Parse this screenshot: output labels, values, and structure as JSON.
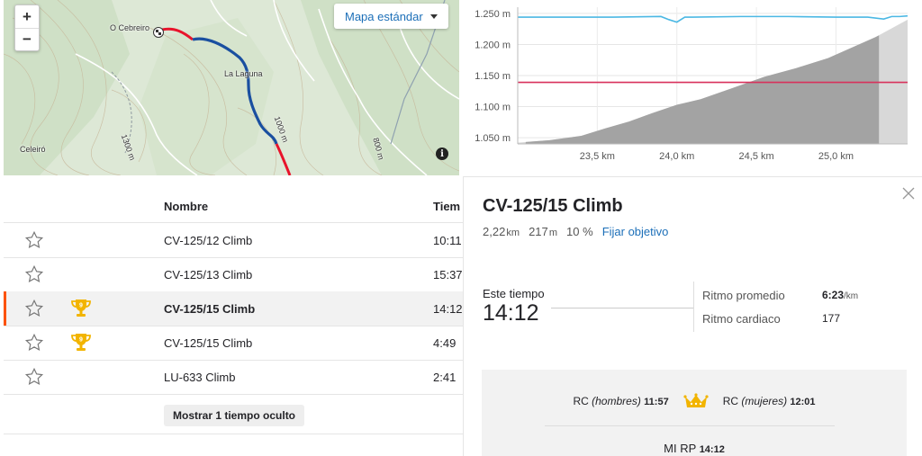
{
  "map": {
    "zoom_in": "+",
    "zoom_out": "−",
    "map_type": "Mapa estándar",
    "labels": {
      "place_1": "O Cebreiro",
      "place_2": "La Laguna",
      "place_3": "Celeiró",
      "contour_1": "1000 m",
      "contour_2": "1300 m",
      "contour_3": "800 m"
    },
    "info_icon": "info-icon",
    "route_colors": {
      "effort": "#e8132b",
      "segment": "#1a4fa0"
    }
  },
  "chart_data": {
    "type": "area",
    "title": "",
    "y_ticks": [
      "1.250 m",
      "1.200 m",
      "1.150 m",
      "1.100 m",
      "1.050 m"
    ],
    "x_ticks": [
      "23,5 km",
      "24,0 km",
      "24,5 km",
      "25,0 km"
    ],
    "ylim": [
      1040,
      1260
    ],
    "xlim": [
      23.0,
      25.45
    ],
    "series": [
      {
        "kind": "elevation",
        "color": "#a3a3a3",
        "x": [
          23.0,
          23.2,
          23.4,
          23.55,
          23.7,
          23.85,
          24.0,
          24.15,
          24.35,
          24.55,
          24.75,
          24.95,
          25.1,
          25.25,
          25.45
        ],
        "y": [
          1042,
          1046,
          1053,
          1065,
          1076,
          1090,
          1103,
          1112,
          1130,
          1148,
          1162,
          1178,
          1195,
          1212,
          1240
        ]
      },
      {
        "kind": "threshold",
        "color": "#d8315b",
        "x": [
          23.0,
          25.45
        ],
        "y": [
          1139,
          1139
        ]
      },
      {
        "kind": "top-trace",
        "color": "#4bb8e4",
        "x": [
          23.0,
          23.3,
          23.6,
          23.9,
          23.95,
          24.0,
          24.05,
          24.1,
          24.4,
          24.7,
          25.0,
          25.2,
          25.3,
          25.35,
          25.4,
          25.45
        ],
        "y": [
          1244,
          1244,
          1244,
          1245,
          1240,
          1236,
          1244,
          1244,
          1245,
          1245,
          1244,
          1244,
          1241,
          1245,
          1245,
          1246
        ]
      }
    ],
    "highlight_range": [
      23.05,
      25.27
    ],
    "grid": true
  },
  "table": {
    "columns": {
      "name": "Nombre",
      "time": "Tiem"
    },
    "rows": [
      {
        "name": "CV-125/12 Climb",
        "time": "10:11",
        "trophy": ""
      },
      {
        "name": "CV-125/13 Climb",
        "time": "15:37",
        "trophy": ""
      },
      {
        "name": "CV-125/15 Climb",
        "time": "14:12",
        "trophy": "9"
      },
      {
        "name": "CV-125/15 Climb",
        "time": "4:49",
        "trophy": "9"
      },
      {
        "name": "LU-633 Climb",
        "time": "2:41",
        "trophy": ""
      }
    ],
    "show_hidden_button": "Mostrar 1 tiempo oculto",
    "accent": "#fc5200"
  },
  "detail": {
    "title": "CV-125/15 Climb",
    "distance": "2,22",
    "distance_unit": "km",
    "elevation": "217",
    "elevation_unit": "m",
    "grade": "10 %",
    "goal_link": "Fijar objetivo",
    "this_time_label": "Este tiempo",
    "this_time": "14:12",
    "pace_label": "Ritmo promedio",
    "pace": "6:23",
    "pace_unit": "/km",
    "hr_label": "Ritmo cardiaco",
    "hr": "177",
    "leaderboard": {
      "kom_prefix": "RC",
      "kom_qualifier": "(hombres)",
      "kom_time": "11:57",
      "qom_prefix": "RC",
      "qom_qualifier": "(mujeres)",
      "qom_time": "12:01",
      "pr_label": "MI RP",
      "pr_time": "14:12"
    }
  }
}
